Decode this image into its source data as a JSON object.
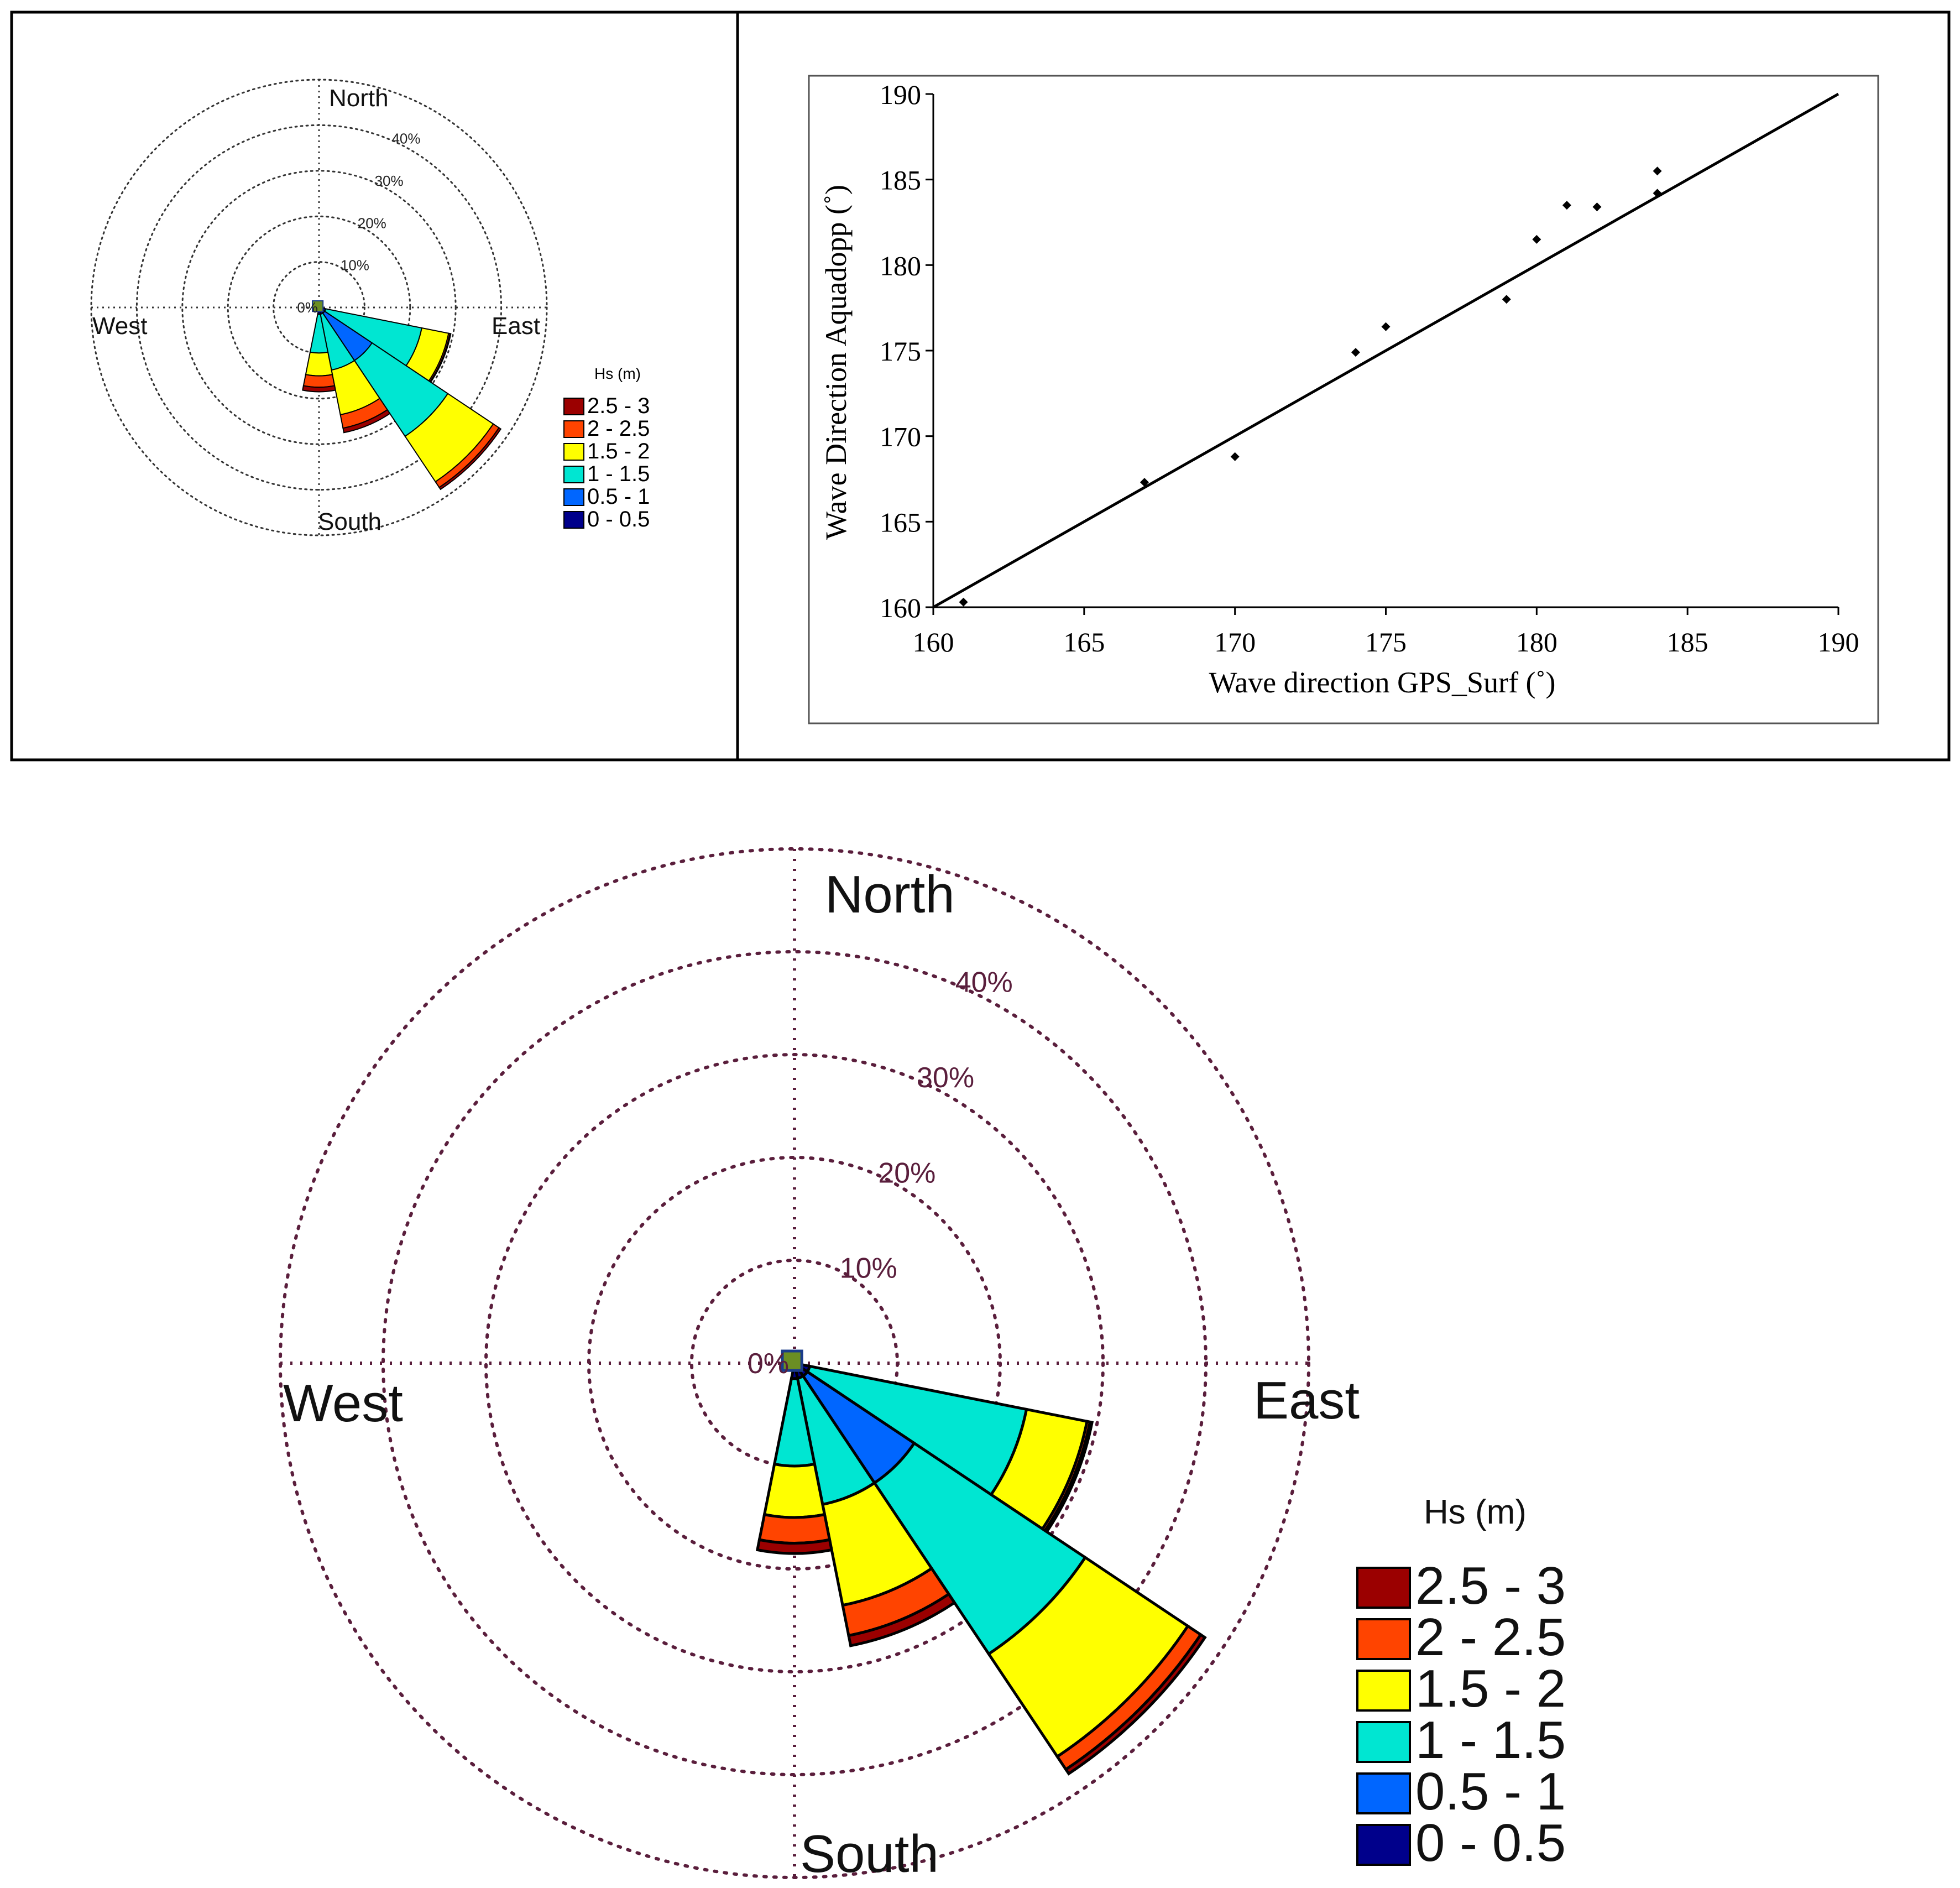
{
  "legend_bins": [
    {
      "label": "2.5 - 3",
      "color": "#9b0000"
    },
    {
      "label": "2 - 2.5",
      "color": "#ff4400"
    },
    {
      "label": "1.5 - 2",
      "color": "#ffff00"
    },
    {
      "label": "1 - 1.5",
      "color": "#00e6d2"
    },
    {
      "label": "0.5 - 1",
      "color": "#0066ff"
    },
    {
      "label": "0 - 0.5",
      "color": "#00008b"
    }
  ],
  "chart_data": [
    {
      "type": "wind-rose",
      "legend_title": "Hs (m)",
      "direction_labels": [
        "North",
        "East",
        "South",
        "West"
      ],
      "radial_labels": [
        "0%",
        "10%",
        "20%",
        "30%",
        "40%"
      ],
      "radial_values": [
        0,
        10,
        20,
        30,
        40
      ],
      "radial_max": 50,
      "sectors": [
        {
          "direction_deg": 112.5,
          "cumulative_pct": [
            1.5,
            1.5,
            23,
            29,
            29.3,
            29.5
          ]
        },
        {
          "direction_deg": 135,
          "cumulative_pct": [
            1.5,
            14,
            34,
            46,
            47.5,
            48
          ]
        },
        {
          "direction_deg": 157.5,
          "cumulative_pct": [
            1.5,
            1.5,
            14,
            24,
            27,
            28
          ]
        },
        {
          "direction_deg": 180,
          "cumulative_pct": [
            1.5,
            1.5,
            10,
            15,
            17.5,
            18.5
          ]
        }
      ]
    },
    {
      "type": "scatter",
      "xlabel": "Wave direction GPS_Surf  (˚)",
      "ylabel": "Wave Direction  Aquadopp  (˚)",
      "xlim": [
        160,
        190
      ],
      "ylim": [
        160,
        190
      ],
      "xticks": [
        160,
        165,
        170,
        175,
        180,
        185,
        190
      ],
      "yticks": [
        160,
        165,
        170,
        175,
        180,
        185,
        190
      ],
      "points": [
        {
          "x": 161,
          "y": 160.3
        },
        {
          "x": 167,
          "y": 167.3
        },
        {
          "x": 170,
          "y": 168.8
        },
        {
          "x": 174,
          "y": 174.9
        },
        {
          "x": 175,
          "y": 176.4
        },
        {
          "x": 179,
          "y": 178
        },
        {
          "x": 180,
          "y": 181.5
        },
        {
          "x": 181,
          "y": 183.5
        },
        {
          "x": 182,
          "y": 183.4
        },
        {
          "x": 184,
          "y": 185.5
        },
        {
          "x": 184,
          "y": 184.2
        }
      ],
      "line": {
        "x": [
          160,
          190
        ],
        "y": [
          160,
          190
        ]
      }
    }
  ]
}
